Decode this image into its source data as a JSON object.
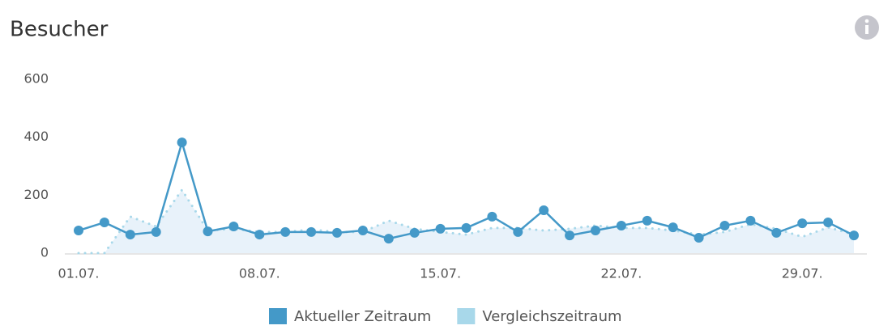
{
  "chart_data": {
    "type": "line",
    "title": "Besucher",
    "categories": [
      "01.07.",
      null,
      null,
      null,
      null,
      null,
      null,
      "08.07.",
      null,
      null,
      null,
      null,
      null,
      null,
      "15.07.",
      null,
      null,
      null,
      null,
      null,
      null,
      "22.07.",
      null,
      null,
      null,
      null,
      null,
      null,
      "29.07.",
      null,
      null
    ],
    "series": [
      {
        "name": "Aktueller Zeitraum",
        "color": "#4499c8",
        "values": [
          78,
          106,
          64,
          73,
          382,
          75,
          92,
          64,
          73,
          73,
          70,
          78,
          50,
          70,
          84,
          87,
          126,
          73,
          148,
          61,
          78,
          95,
          112,
          89,
          53,
          95,
          112,
          70,
          103,
          106,
          61
        ]
      },
      {
        "name": "Vergleichszeitraum",
        "color": "#a8d8ea",
        "values": [
          0,
          0,
          126,
          92,
          218,
          78,
          84,
          73,
          73,
          81,
          73,
          73,
          112,
          84,
          73,
          64,
          87,
          87,
          78,
          84,
          95,
          87,
          87,
          78,
          64,
          73,
          100,
          84,
          56,
          89,
          64
        ]
      }
    ],
    "ylim": [
      0,
      600
    ],
    "yticks": [
      0,
      200,
      400,
      600
    ]
  }
}
